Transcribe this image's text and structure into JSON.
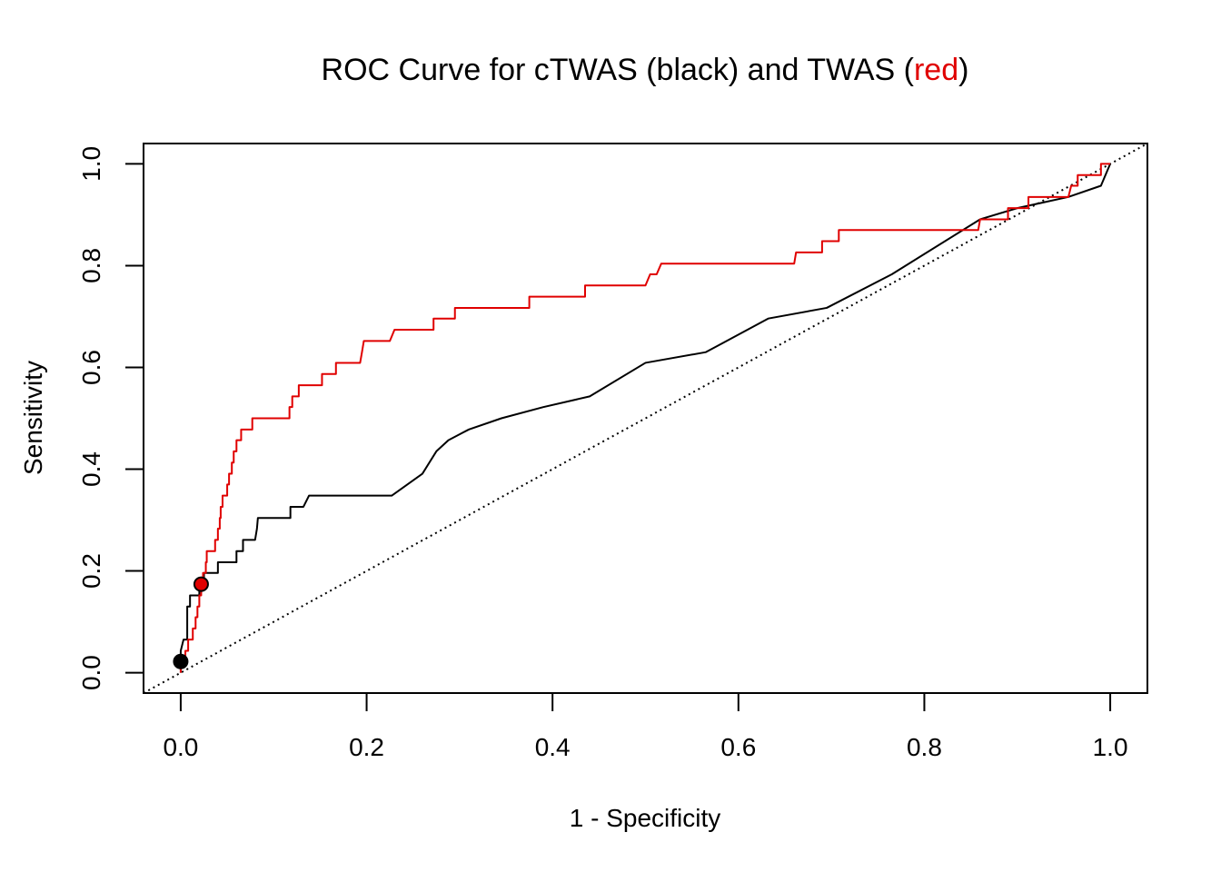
{
  "chart_data": {
    "type": "line",
    "title": {
      "prefix": "ROC Curve for cTWAS (black) and TWAS (",
      "highlight": "red",
      "suffix": ")",
      "highlight_color": "#e00000"
    },
    "xlabel": "1 - Specificity",
    "ylabel": "Sensitivity",
    "xlim": [
      -0.04,
      1.04
    ],
    "ylim": [
      -0.04,
      1.04
    ],
    "x_ticks": [
      "0.0",
      "0.2",
      "0.4",
      "0.6",
      "0.8",
      "1.0"
    ],
    "y_ticks": [
      "0.0",
      "0.2",
      "0.4",
      "0.6",
      "0.8",
      "1.0"
    ],
    "reference_line": {
      "from": [
        0,
        0
      ],
      "to": [
        1,
        1
      ],
      "style": "dotted"
    },
    "grid": false,
    "legend": "none",
    "series": [
      {
        "color": "#000000",
        "points": [
          [
            0.0,
            0.0
          ],
          [
            0.0,
            0.022
          ],
          [
            0.0,
            0.043
          ],
          [
            0.003,
            0.065
          ],
          [
            0.007,
            0.065
          ],
          [
            0.007,
            0.13
          ],
          [
            0.01,
            0.13
          ],
          [
            0.01,
            0.152
          ],
          [
            0.02,
            0.152
          ],
          [
            0.02,
            0.174
          ],
          [
            0.025,
            0.174
          ],
          [
            0.025,
            0.196
          ],
          [
            0.04,
            0.196
          ],
          [
            0.04,
            0.217
          ],
          [
            0.06,
            0.217
          ],
          [
            0.06,
            0.239
          ],
          [
            0.067,
            0.239
          ],
          [
            0.067,
            0.261
          ],
          [
            0.08,
            0.261
          ],
          [
            0.082,
            0.283
          ],
          [
            0.083,
            0.304
          ],
          [
            0.118,
            0.304
          ],
          [
            0.118,
            0.326
          ],
          [
            0.132,
            0.326
          ],
          [
            0.138,
            0.348
          ],
          [
            0.227,
            0.348
          ],
          [
            0.26,
            0.391
          ],
          [
            0.275,
            0.435
          ],
          [
            0.288,
            0.457
          ],
          [
            0.31,
            0.478
          ],
          [
            0.345,
            0.5
          ],
          [
            0.39,
            0.522
          ],
          [
            0.44,
            0.543
          ],
          [
            0.5,
            0.609
          ],
          [
            0.565,
            0.63
          ],
          [
            0.632,
            0.696
          ],
          [
            0.695,
            0.717
          ],
          [
            0.765,
            0.783
          ],
          [
            0.86,
            0.891
          ],
          [
            0.9,
            0.913
          ],
          [
            0.955,
            0.935
          ],
          [
            0.99,
            0.957
          ],
          [
            1.0,
            1.0
          ]
        ]
      },
      {
        "color": "#e00000",
        "points": [
          [
            0.0,
            0.0
          ],
          [
            0.0,
            0.022
          ],
          [
            0.005,
            0.022
          ],
          [
            0.005,
            0.043
          ],
          [
            0.008,
            0.043
          ],
          [
            0.008,
            0.065
          ],
          [
            0.013,
            0.065
          ],
          [
            0.013,
            0.087
          ],
          [
            0.016,
            0.087
          ],
          [
            0.016,
            0.109
          ],
          [
            0.018,
            0.109
          ],
          [
            0.018,
            0.13
          ],
          [
            0.02,
            0.13
          ],
          [
            0.02,
            0.152
          ],
          [
            0.022,
            0.152
          ],
          [
            0.022,
            0.174
          ],
          [
            0.024,
            0.174
          ],
          [
            0.024,
            0.196
          ],
          [
            0.027,
            0.196
          ],
          [
            0.027,
            0.217
          ],
          [
            0.028,
            0.217
          ],
          [
            0.028,
            0.239
          ],
          [
            0.037,
            0.239
          ],
          [
            0.037,
            0.261
          ],
          [
            0.04,
            0.261
          ],
          [
            0.04,
            0.283
          ],
          [
            0.042,
            0.283
          ],
          [
            0.042,
            0.304
          ],
          [
            0.043,
            0.304
          ],
          [
            0.043,
            0.326
          ],
          [
            0.045,
            0.326
          ],
          [
            0.045,
            0.348
          ],
          [
            0.05,
            0.348
          ],
          [
            0.05,
            0.37
          ],
          [
            0.052,
            0.37
          ],
          [
            0.052,
            0.391
          ],
          [
            0.055,
            0.391
          ],
          [
            0.055,
            0.413
          ],
          [
            0.057,
            0.413
          ],
          [
            0.057,
            0.435
          ],
          [
            0.06,
            0.435
          ],
          [
            0.06,
            0.457
          ],
          [
            0.065,
            0.457
          ],
          [
            0.065,
            0.478
          ],
          [
            0.077,
            0.478
          ],
          [
            0.077,
            0.5
          ],
          [
            0.117,
            0.5
          ],
          [
            0.117,
            0.522
          ],
          [
            0.12,
            0.522
          ],
          [
            0.12,
            0.543
          ],
          [
            0.127,
            0.543
          ],
          [
            0.127,
            0.565
          ],
          [
            0.152,
            0.565
          ],
          [
            0.152,
            0.587
          ],
          [
            0.167,
            0.587
          ],
          [
            0.167,
            0.609
          ],
          [
            0.193,
            0.609
          ],
          [
            0.195,
            0.63
          ],
          [
            0.197,
            0.652
          ],
          [
            0.225,
            0.652
          ],
          [
            0.23,
            0.674
          ],
          [
            0.272,
            0.674
          ],
          [
            0.272,
            0.696
          ],
          [
            0.295,
            0.696
          ],
          [
            0.295,
            0.717
          ],
          [
            0.375,
            0.717
          ],
          [
            0.375,
            0.739
          ],
          [
            0.435,
            0.739
          ],
          [
            0.435,
            0.761
          ],
          [
            0.5,
            0.761
          ],
          [
            0.505,
            0.783
          ],
          [
            0.512,
            0.783
          ],
          [
            0.517,
            0.804
          ],
          [
            0.66,
            0.804
          ],
          [
            0.662,
            0.826
          ],
          [
            0.69,
            0.826
          ],
          [
            0.69,
            0.848
          ],
          [
            0.708,
            0.848
          ],
          [
            0.708,
            0.87
          ],
          [
            0.858,
            0.87
          ],
          [
            0.86,
            0.891
          ],
          [
            0.89,
            0.891
          ],
          [
            0.89,
            0.913
          ],
          [
            0.912,
            0.913
          ],
          [
            0.912,
            0.935
          ],
          [
            0.955,
            0.935
          ],
          [
            0.958,
            0.957
          ],
          [
            0.965,
            0.957
          ],
          [
            0.965,
            0.978
          ],
          [
            0.99,
            0.978
          ],
          [
            0.99,
            1.0
          ],
          [
            1.0,
            1.0
          ]
        ]
      }
    ],
    "markers": [
      {
        "x": 0.0,
        "y": 0.022,
        "fill": "#000000"
      },
      {
        "x": 0.022,
        "y": 0.174,
        "fill": "#e00000"
      }
    ]
  }
}
